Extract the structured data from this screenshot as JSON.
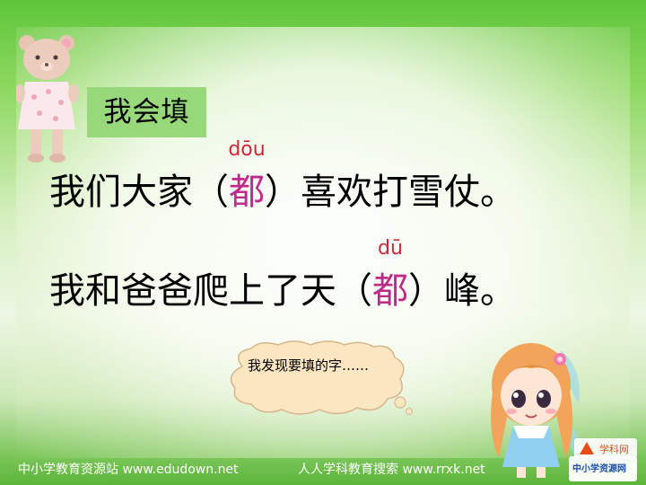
{
  "slide": {
    "title": "我会填",
    "sentence1": {
      "before": "我们大家",
      "paren_open": "（",
      "char": "都",
      "paren_close": "）",
      "after": "喜欢打雪仗。",
      "pinyin": "dōu"
    },
    "sentence2": {
      "before": "我和爸爸爬上了天",
      "paren_open": "（",
      "char": "都",
      "paren_close": "）",
      "after": "峰。",
      "pinyin": "dū"
    },
    "bubble_text": "我发现要填的字……",
    "footer_left": "中小学教育资源站 www.edudown.net",
    "footer_right": "人人学科教育搜索 www.rrxk.net",
    "logo_top": "学科网",
    "logo_bottom": "中小学资源网"
  },
  "colors": {
    "highlight": "#c02a8a",
    "pinyin": "#d0283a",
    "title_bg": "#96d87a"
  },
  "icons": [
    "teddy-bear-icon",
    "cartoon-girl-icon",
    "thought-bubble-icon"
  ]
}
